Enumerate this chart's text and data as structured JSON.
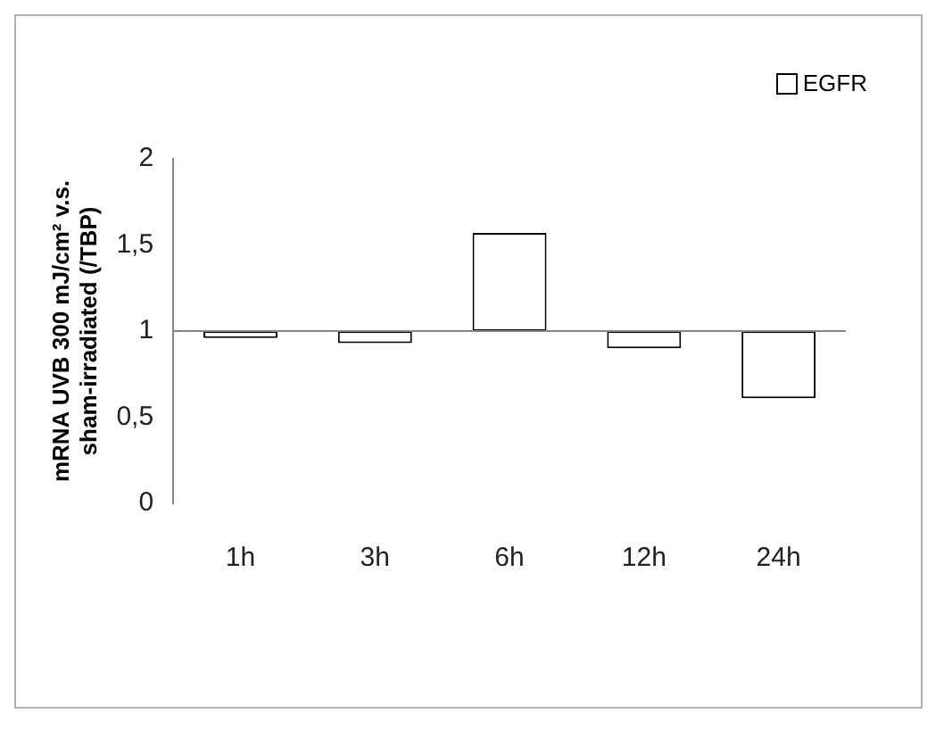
{
  "chart_data": {
    "type": "bar",
    "ylabel": "mRNA UVB 300 mJ/cm² v.s. sham-irradiated (/TBP)",
    "categories": [
      "1h",
      "3h",
      "6h",
      "12h",
      "24h"
    ],
    "series": [
      {
        "name": "EGFR",
        "color": "#ffffff",
        "values": [
          -0.04,
          -0.07,
          0.57,
          -0.1,
          -0.39
        ],
        "base": [
          1,
          1,
          1,
          1,
          1
        ]
      }
    ],
    "ref_lines": [
      {
        "axis": "y",
        "value": 1,
        "color": "#868686"
      }
    ],
    "ylim": [
      0,
      2
    ],
    "yticks": [
      0,
      {
        "value": 0.5,
        "label": "0,5"
      },
      1,
      {
        "value": 1.5,
        "label": "1,5"
      },
      2
    ],
    "grid": false,
    "legend": "top right"
  }
}
